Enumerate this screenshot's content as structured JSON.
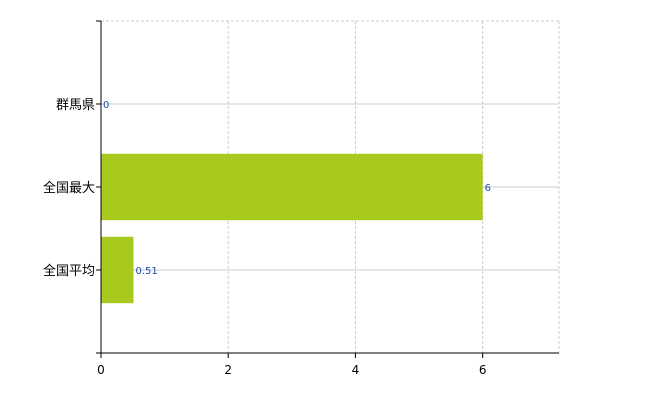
{
  "chart_data": {
    "type": "bar",
    "orientation": "horizontal",
    "categories": [
      "群馬県",
      "全国最大",
      "全国平均"
    ],
    "values": [
      0,
      6,
      0.51
    ],
    "data_labels": [
      "0",
      "6",
      "0.51"
    ],
    "xlim": [
      0,
      7.2
    ],
    "xticks": [
      0,
      2,
      4,
      6
    ],
    "xtick_labels": [
      "0",
      "2",
      "4",
      "6"
    ],
    "grid": true,
    "legend": "none",
    "title": "",
    "xlabel": "",
    "ylabel": "",
    "colors": {
      "bar": "#a8c91e",
      "data_label": "#1a4fa0",
      "grid": "#cccccc",
      "axis": "#000000"
    }
  }
}
